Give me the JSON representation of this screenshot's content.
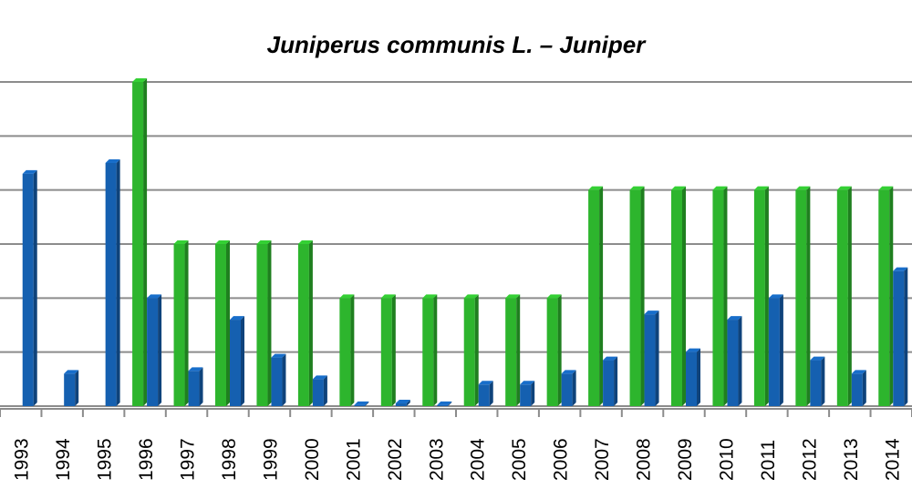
{
  "chart_data": {
    "type": "bar",
    "title": "Juniperus communis L. – Juniper",
    "categories": [
      "1993",
      "1994",
      "1995",
      "1996",
      "1997",
      "1998",
      "1999",
      "2000",
      "2001",
      "2002",
      "2003",
      "2004",
      "2005",
      "2006",
      "2007",
      "2008",
      "2009",
      "2010",
      "2011",
      "2012",
      "2013",
      "2014"
    ],
    "series": [
      {
        "color": "#2db52d",
        "values": [
          0,
          0,
          0,
          6,
          3,
          3,
          3,
          3,
          2,
          2,
          2,
          2,
          2,
          2,
          4,
          4,
          4,
          4,
          4,
          4,
          4,
          4
        ]
      },
      {
        "color": "#1560b0",
        "values": [
          4.3,
          0.6,
          4.5,
          2.0,
          0.65,
          1.6,
          0.9,
          0.5,
          0.02,
          0.05,
          0.02,
          0.4,
          0.4,
          0.6,
          0.85,
          1.7,
          1.0,
          1.6,
          2.0,
          0.85,
          0.6,
          2.5
        ]
      }
    ],
    "ylim": [
      0,
      6
    ],
    "grid": true
  }
}
